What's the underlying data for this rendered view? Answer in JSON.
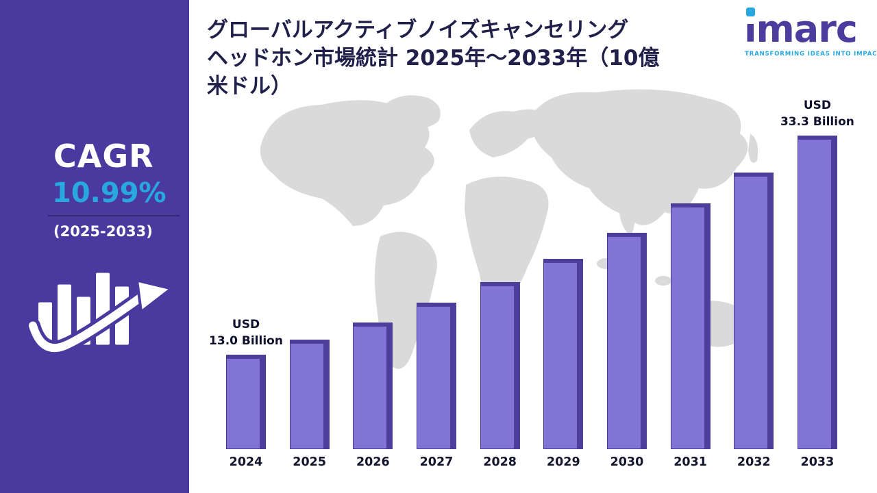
{
  "sidebar": {
    "cagr_label": "CAGR",
    "cagr_value": "10.99%",
    "period": "(2025-2033)",
    "bg_color": "#4a3a9f",
    "accent_color": "#29a8e0",
    "growth_icon": "bar-chart-up-arrow-icon"
  },
  "logo": {
    "brand": "imarc",
    "tagline": "TRANSFORMING IDEAS INTO IMPACT",
    "brand_color": "#4c3c9e",
    "accent_color": "#29a8e0"
  },
  "title": {
    "lines": [
      "グローバルアクティブノイズキャンセリング",
      "ヘッドホン市場統計 2025年～2033年（10億",
      "米ドル）"
    ],
    "color": "#20204a"
  },
  "chart_data": {
    "type": "bar",
    "title": "グローバルアクティブノイズキャンセリングヘッドホン市場統計 2025年～2033年（10億米ドル）",
    "unit": "USD Billion",
    "cagr": "10.99%",
    "cagr_period": "2025-2033",
    "categories": [
      "2024",
      "2025",
      "2026",
      "2027",
      "2028",
      "2029",
      "2030",
      "2031",
      "2032",
      "2033"
    ],
    "values": [
      13.0,
      14.4,
      16.0,
      17.8,
      19.7,
      21.9,
      24.3,
      27.0,
      29.9,
      33.3
    ],
    "value_labels": [
      "USD\n13.0 Billion",
      null,
      null,
      null,
      null,
      null,
      null,
      null,
      null,
      "USD\n33.3 Billion"
    ],
    "bar_color": "#8274d4",
    "bar_edge_color": "#4d3e9c",
    "xlabel": "",
    "ylabel": "",
    "grid": false,
    "legend": false,
    "background": "faded-world-map"
  }
}
